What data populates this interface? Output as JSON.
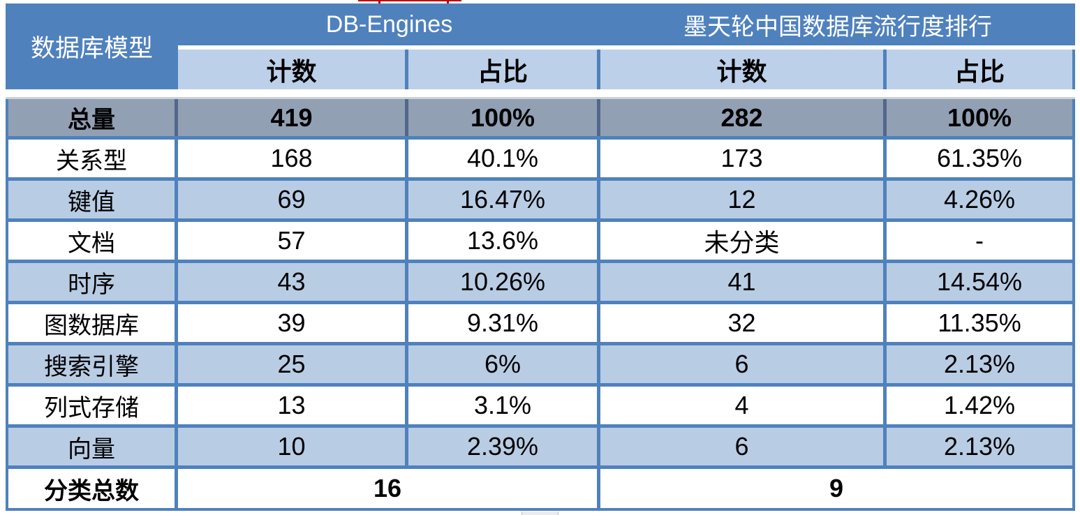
{
  "table": {
    "corner_label": "数据库模型",
    "groups": [
      {
        "title": "DB-Engines",
        "columns": [
          "计数",
          "占比"
        ]
      },
      {
        "title": "墨天轮中国数据库流行度排行",
        "columns": [
          "计数",
          "占比"
        ]
      }
    ],
    "total_row": {
      "label": "总量",
      "values": [
        "419",
        "100%",
        "282",
        "100%"
      ]
    },
    "rows": [
      {
        "label": "关系型",
        "values": [
          "168",
          "40.1%",
          "173",
          "61.35%"
        ]
      },
      {
        "label": "键值",
        "values": [
          "69",
          "16.47%",
          "12",
          "4.26%"
        ]
      },
      {
        "label": "文档",
        "values": [
          "57",
          "13.6%",
          "未分类",
          "-"
        ]
      },
      {
        "label": "时序",
        "values": [
          "43",
          "10.26%",
          "41",
          "14.54%"
        ]
      },
      {
        "label": "图数据库",
        "values": [
          "39",
          "9.31%",
          "32",
          "11.35%"
        ]
      },
      {
        "label": "搜索引擎",
        "values": [
          "25",
          "6%",
          "6",
          "2.13%"
        ]
      },
      {
        "label": "列式存储",
        "values": [
          "13",
          "3.1%",
          "4",
          "1.42%"
        ]
      },
      {
        "label": "向量",
        "values": [
          "10",
          "2.39%",
          "6",
          "2.13%"
        ]
      }
    ],
    "summary_row": {
      "label": "分类总数",
      "values": [
        "16",
        "9"
      ]
    }
  },
  "colors": {
    "header_blue": "#4F81BD",
    "light_blue": "#B8CCE4",
    "subheader_blue": "#BDD0E9",
    "total_gray": "#92A0B4",
    "total_divider": "#51678C",
    "border_blue": "#4F81BD",
    "annotation_red": "#C00000"
  },
  "chart_data": {
    "type": "table",
    "title": "数据库模型统计：DB-Engines vs 墨天轮中国数据库流行度排行",
    "columns": [
      "数据库模型",
      "DB-Engines 计数",
      "DB-Engines 占比",
      "墨天轮 计数",
      "墨天轮 占比"
    ],
    "rows": [
      [
        "总量",
        "419",
        "100%",
        "282",
        "100%"
      ],
      [
        "关系型",
        "168",
        "40.1%",
        "173",
        "61.35%"
      ],
      [
        "键值",
        "69",
        "16.47%",
        "12",
        "4.26%"
      ],
      [
        "文档",
        "57",
        "13.6%",
        "未分类",
        "-"
      ],
      [
        "时序",
        "43",
        "10.26%",
        "41",
        "14.54%"
      ],
      [
        "图数据库",
        "39",
        "9.31%",
        "32",
        "11.35%"
      ],
      [
        "搜索引擎",
        "25",
        "6%",
        "6",
        "2.13%"
      ],
      [
        "列式存储",
        "13",
        "3.1%",
        "4",
        "1.42%"
      ],
      [
        "向量",
        "10",
        "2.39%",
        "6",
        "2.13%"
      ],
      [
        "分类总数",
        "16",
        "",
        "9",
        ""
      ]
    ]
  }
}
